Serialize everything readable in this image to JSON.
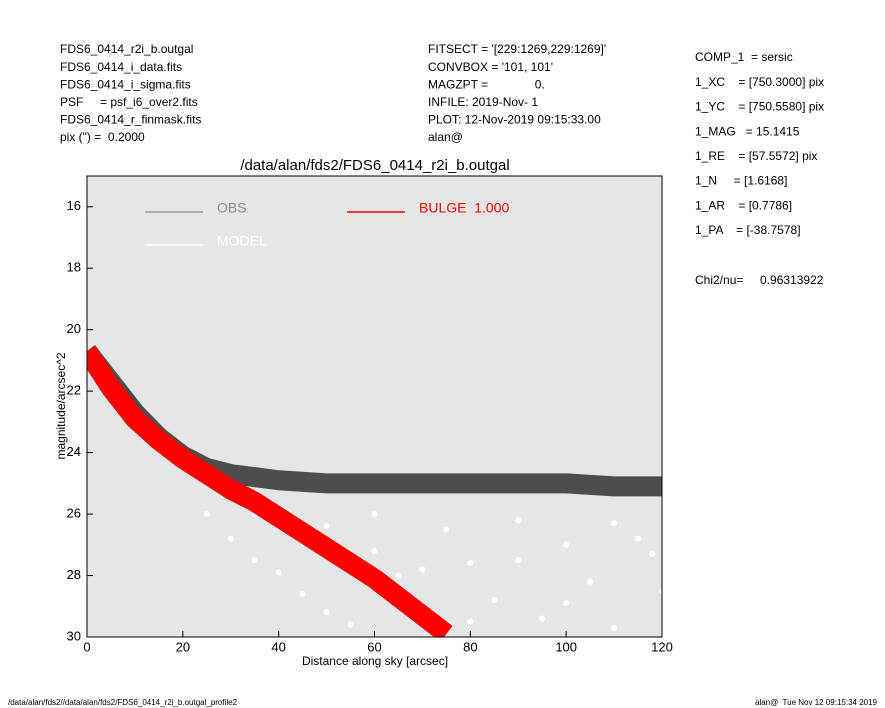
{
  "chart_data": {
    "type": "scatter",
    "title": "/data/alan/fds2/FDS6_0414_r2i_b.outgal",
    "xlabel": "Distance along sky [arcsec]",
    "ylabel": "magnitude/arcsec^2",
    "xlim": [
      0,
      120
    ],
    "ylim": [
      15,
      30
    ],
    "y_inverted": true,
    "xticks": [
      0,
      20,
      40,
      60,
      80,
      100,
      120
    ],
    "yticks": [
      16,
      18,
      20,
      22,
      24,
      26,
      28,
      30
    ],
    "background": "#e6e6e6",
    "header_left": [
      "FDS6_0414_r2i_b.outgal",
      "FDS6_0414_i_data.fits",
      "FDS6_0414_i_sigma.fits",
      "PSF     = psf_i6_over2.fits",
      "FDS6_0414_r_finmask.fits",
      "pix (\") =  0.2000"
    ],
    "header_center": [
      "FITSECT = '[229:1269,229:1269]'",
      "CONVBOX = '101, 101'",
      "MAGZPT =              0.",
      "INFILE: 2019-Nov- 1",
      "PLOT: 12-Nov-2019 09:15:33.00",
      "alan@"
    ],
    "header_right": [
      "COMP_1  = sersic",
      "1_XC    = [750.3000] pix",
      "1_YC    = [750.5580] pix",
      "1_MAG   = 15.1415",
      "1_RE    = [57.5572] pix",
      "1_N     = [1.6168]",
      "1_AR    = [0.7786]",
      "1_PA    = [-38.7578]"
    ],
    "chi2": "Chi2/nu=     0.96313922",
    "footer_left": "/data/alan/fds2//data/alan/fds2/FDS6_0414_r2i_b.outgal_profile2",
    "footer_right": "alan@  Tue Nov 12 09:15:34 2019",
    "series": [
      {
        "name": "OBS",
        "color": "#4d4d4d",
        "legend_color": "#8c8c8c",
        "style": "band",
        "x": [
          0,
          5,
          10,
          15,
          20,
          25,
          30,
          40,
          50,
          60,
          70,
          80,
          90,
          100,
          110,
          120
        ],
        "values": [
          20.7,
          21.7,
          22.7,
          23.5,
          24.1,
          24.5,
          24.7,
          24.9,
          25,
          25,
          25,
          25,
          25,
          25,
          25.1,
          25.1
        ]
      },
      {
        "name": "MODEL",
        "color": "#ffffff",
        "legend_color": "#ffffff",
        "style": "points",
        "x": [
          25,
          30,
          35,
          40,
          45,
          50,
          55,
          60,
          65,
          70,
          75,
          80,
          85,
          90,
          95,
          100,
          105,
          110,
          115,
          120,
          40,
          60,
          80,
          100,
          118,
          50,
          70,
          90,
          110,
          35
        ],
        "values": [
          26.0,
          26.8,
          27.5,
          27.9,
          28.6,
          29.2,
          29.6,
          27.2,
          28.0,
          29.0,
          26.5,
          27.6,
          28.8,
          26.2,
          29.4,
          27.0,
          28.2,
          29.7,
          26.8,
          28.5,
          26.2,
          26.0,
          29.5,
          28.9,
          27.3,
          26.4,
          27.8,
          27.5,
          26.3,
          26.0
        ]
      },
      {
        "name": "BULGE  1.000",
        "color": "#ff0000",
        "legend_color": "#ff0000",
        "style": "band",
        "x": [
          0,
          5,
          10,
          15,
          20,
          25,
          30,
          35,
          40,
          45,
          50,
          55,
          60,
          65,
          70,
          75
        ],
        "values": [
          20.7,
          21.9,
          22.9,
          23.6,
          24.2,
          24.7,
          25.2,
          25.6,
          26.1,
          26.6,
          27.1,
          27.6,
          28.1,
          28.7,
          29.3,
          29.9
        ]
      }
    ]
  }
}
